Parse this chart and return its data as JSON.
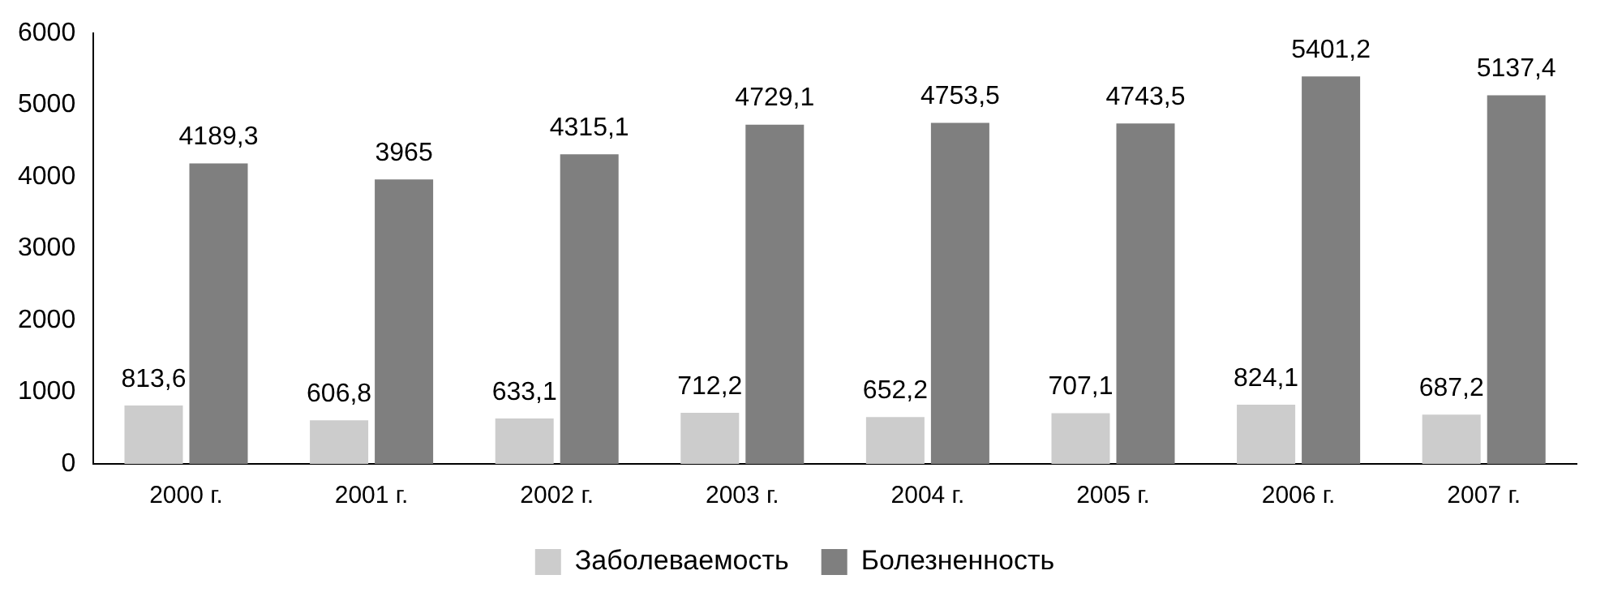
{
  "chart_data": {
    "type": "bar",
    "categories": [
      "2000 г.",
      "2001 г.",
      "2002 г.",
      "2003 г.",
      "2004 г.",
      "2005 г.",
      "2006 г.",
      "2007 г."
    ],
    "series": [
      {
        "name": "Заболеваемость",
        "color": "#cccccc",
        "values": [
          813.6,
          606.8,
          633.1,
          712.2,
          652.2,
          707.1,
          824.1,
          687.2
        ],
        "value_labels": [
          "813,6",
          "606,8",
          "633,1",
          "712,2",
          "652,2",
          "707,1",
          "824,1",
          "687,2"
        ]
      },
      {
        "name": "Болезненность",
        "color": "#7f7f7f",
        "values": [
          4189.3,
          3965,
          4315.1,
          4729.1,
          4753.5,
          4743.5,
          5401.2,
          5137.4
        ],
        "value_labels": [
          "4189,3",
          "3965",
          "4315,1",
          "4729,1",
          "4753,5",
          "4743,5",
          "5401,2",
          "5137,4"
        ]
      }
    ],
    "ylim": [
      0,
      6000
    ],
    "yticks": [
      0,
      1000,
      2000,
      3000,
      4000,
      5000,
      6000
    ],
    "grid": false,
    "legend": "bottom"
  }
}
